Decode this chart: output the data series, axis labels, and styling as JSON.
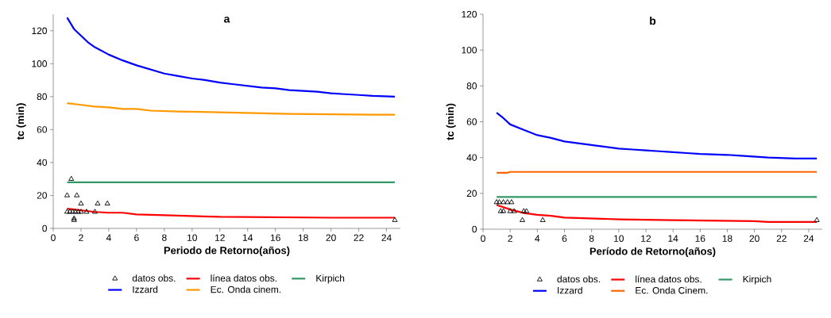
{
  "chart_data": [
    {
      "type": "line",
      "title": "a",
      "xlabel": "Periodo de Retorno(años)",
      "ylabel": "tc (min)",
      "xlim": [
        0,
        25
      ],
      "ylim": [
        0,
        130
      ],
      "xticks": [
        0,
        2,
        4,
        6,
        8,
        10,
        12,
        14,
        16,
        18,
        20,
        22,
        24
      ],
      "yticks": [
        0,
        20,
        40,
        60,
        80,
        100,
        120
      ],
      "legend": "bottom",
      "grid": false,
      "line_style": "solid",
      "series": [
        {
          "name": "datos obs.",
          "type": "scatter",
          "marker": "triangle",
          "color": "#000000",
          "x": [
            1,
            1.7,
            1.3,
            2,
            3.2,
            3.9,
            1,
            1.2,
            1.4,
            1.6,
            1.8,
            2,
            2.4,
            3,
            1.5,
            1.5,
            24.6
          ],
          "values": [
            20,
            20,
            30,
            15,
            15,
            15,
            10,
            10,
            10,
            10,
            10,
            10,
            10,
            10,
            5,
            6,
            5
          ]
        },
        {
          "name": "línea datos obs.",
          "color": "#ff0000",
          "x": [
            1,
            2,
            3,
            4,
            5,
            6,
            8,
            12,
            20,
            24.6
          ],
          "values": [
            12,
            11,
            10,
            9.5,
            9.5,
            8.5,
            8,
            7,
            6.5,
            6.5
          ]
        },
        {
          "name": "Kirpich",
          "color": "#339966",
          "x": [
            1,
            24.6
          ],
          "values": [
            28,
            28
          ]
        },
        {
          "name": "Izzard",
          "color": "#0000ff",
          "x": [
            1,
            1.5,
            2,
            2.5,
            3,
            4,
            5,
            6,
            7,
            8,
            9,
            10,
            11,
            12,
            13,
            14,
            15,
            16,
            17,
            18,
            19,
            20,
            21,
            22,
            23,
            24.6
          ],
          "values": [
            128,
            121,
            117,
            113,
            110,
            105.5,
            102,
            99,
            96.5,
            94,
            92.5,
            91,
            90,
            88.5,
            87.5,
            86.5,
            85.5,
            85,
            84,
            83.5,
            83,
            82,
            81.5,
            81,
            80.5,
            80
          ]
        },
        {
          "name": "Ec. Onda cinem.",
          "color": "#ff9900",
          "x": [
            1,
            2,
            3,
            4,
            5,
            6,
            7,
            9,
            12,
            17,
            23,
            24.6
          ],
          "values": [
            76,
            75,
            74,
            73.5,
            72.5,
            72.5,
            71.5,
            71,
            70.5,
            69.5,
            69,
            69
          ]
        }
      ]
    },
    {
      "type": "line",
      "title": "b",
      "xlabel": "Período de Retorno(años)",
      "ylabel": "tc (min)",
      "xlim": [
        0,
        25
      ],
      "ylim": [
        0,
        120
      ],
      "xticks": [
        0,
        2,
        4,
        6,
        8,
        10,
        12,
        14,
        16,
        18,
        20,
        22,
        24
      ],
      "yticks": [
        0,
        20,
        40,
        60,
        80,
        100,
        120
      ],
      "legend": "bottom",
      "grid": false,
      "line_style": "solid",
      "series": [
        {
          "name": "datos obs.",
          "type": "scatter",
          "marker": "triangle",
          "color": "#000000",
          "x": [
            1,
            1.2,
            1.5,
            1.8,
            2.1,
            1.3,
            1.5,
            2,
            2.3,
            3,
            3.2,
            2.9,
            4.4,
            24.6
          ],
          "values": [
            15,
            15,
            15,
            15,
            15,
            10,
            10,
            10,
            10,
            10,
            10,
            5,
            5,
            5
          ]
        },
        {
          "name": "línea datos obs.",
          "color": "#ff0000",
          "x": [
            1,
            2,
            3,
            4,
            5,
            6,
            8,
            10,
            14,
            20,
            21,
            24.6
          ],
          "values": [
            13.5,
            11,
            9,
            8,
            7.5,
            6.5,
            6,
            5.5,
            5,
            4.5,
            4,
            4
          ]
        },
        {
          "name": "Kirpich",
          "color": "#339966",
          "x": [
            1,
            24.6
          ],
          "values": [
            18,
            18
          ]
        },
        {
          "name": "Izzard",
          "color": "#0000ff",
          "x": [
            1,
            1.5,
            2,
            3,
            4,
            5,
            6,
            7,
            8,
            9,
            10,
            11,
            12,
            13,
            14,
            15,
            16,
            18,
            19,
            21,
            23,
            24.6
          ],
          "values": [
            65,
            62,
            58.5,
            55.5,
            52.5,
            51,
            49,
            48,
            47,
            46,
            45,
            44.5,
            44,
            43.5,
            43,
            42.5,
            42,
            41.5,
            41,
            40,
            39.5,
            39.5
          ]
        },
        {
          "name": "Ec. Onda Cinem.",
          "color": "#ff6600",
          "x": [
            1,
            1.8,
            2,
            24.6
          ],
          "values": [
            31.5,
            31.5,
            32,
            32
          ]
        }
      ]
    }
  ]
}
